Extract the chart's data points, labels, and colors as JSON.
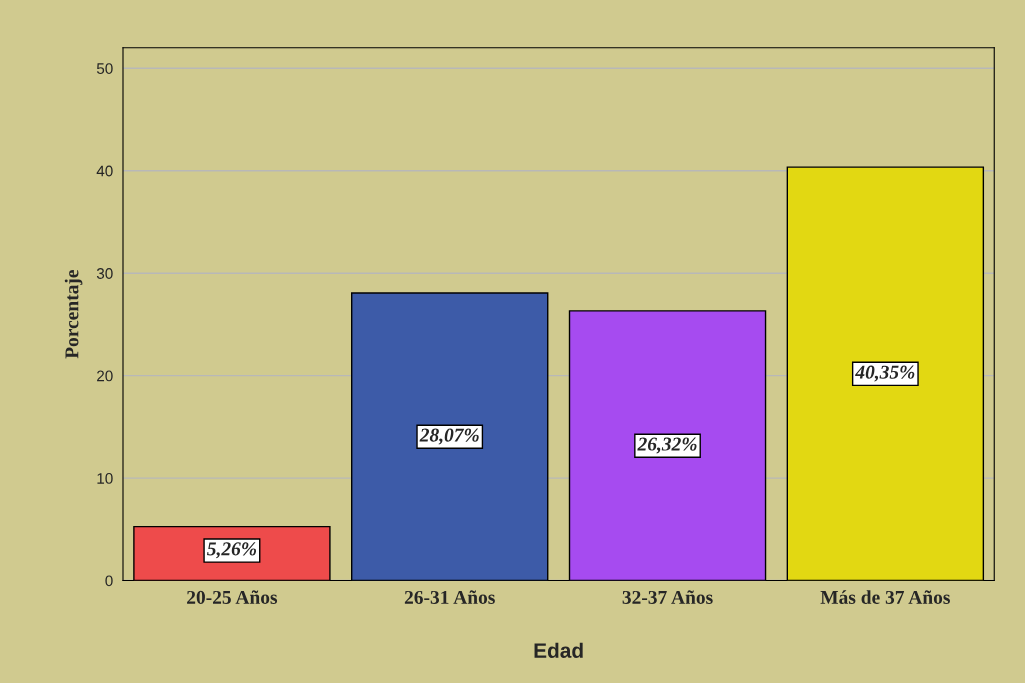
{
  "chart_data": {
    "type": "bar",
    "xlabel": "Edad",
    "ylabel": "Porcentaje",
    "categories": [
      "20-25 Años",
      "26-31 Años",
      "32-37 Años",
      "Más de 37 Años"
    ],
    "values": [
      5.26,
      28.07,
      26.32,
      40.35
    ],
    "colors": [
      "#ee4b4b",
      "#3d5ba8",
      "#a64bf0",
      "#e2d812"
    ],
    "value_labels": [
      "5,26%",
      "28,07%",
      "26,32%",
      "40,35%"
    ],
    "ylim": [
      0,
      52
    ],
    "yticks": [
      0,
      10,
      20,
      30,
      40,
      50
    ],
    "grid": "y"
  }
}
